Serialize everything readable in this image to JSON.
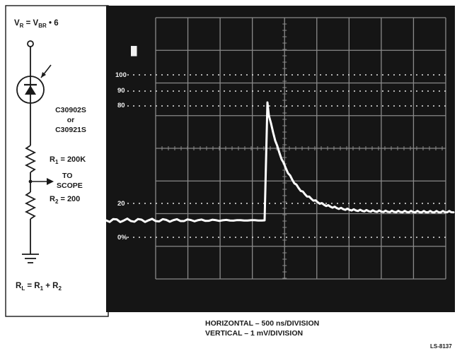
{
  "circuit": {
    "top_label": "V",
    "top_label_sub1": "R",
    "top_label_mid": " = V",
    "top_label_sub2": "BR",
    "top_label_end": " • 6",
    "diode_part1": "C30902S",
    "diode_or": "or",
    "diode_part2": "C30921S",
    "r1_label": "R",
    "r1_sub": "1",
    "r1_value": " = 200K",
    "scope_to": "TO",
    "scope_word": "SCOPE",
    "r2_label": "R",
    "r2_sub": "2",
    "r2_value": " = 200",
    "rl_label": "R",
    "rl_sub": "L",
    "rl_eq": " = R",
    "rl_sub1": "1",
    "rl_plus": " + R",
    "rl_sub2": "2"
  },
  "scope": {
    "corner_mark": "█",
    "ref_100": "100",
    "ref_90": "90",
    "ref_80": "80",
    "ref_20": "20",
    "ref_0": "0%",
    "trace_color": "#ffffff",
    "screen_color": "#151515",
    "grid_color": "#8a8a8a"
  },
  "caption": {
    "horizontal": "HORIZONTAL – 500 ns/DIVISION",
    "vertical": "VERTICAL – 1 mV/DIVISION",
    "figure_id": "LS-8137"
  }
}
